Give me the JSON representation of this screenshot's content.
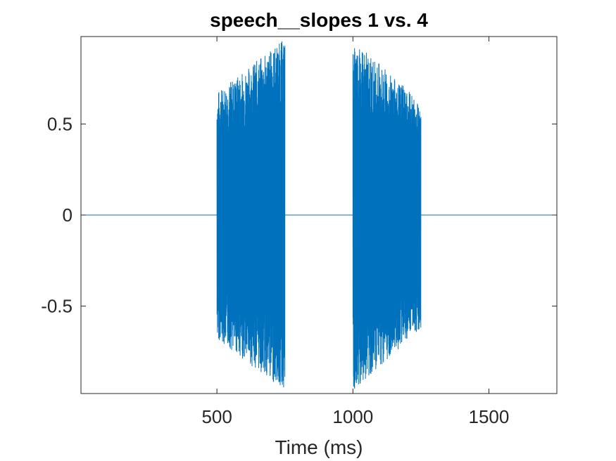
{
  "chart_data": {
    "type": "line",
    "title": "speech__slopes 1 vs. 4",
    "xlabel": "Time (ms)",
    "ylabel": "",
    "xlim": [
      0,
      1750
    ],
    "ylim": [
      -0.98,
      0.98
    ],
    "xticks": [
      500,
      1000,
      1500
    ],
    "xtick_labels": [
      "500",
      "1000",
      "1500"
    ],
    "yticks": [
      -0.5,
      0,
      0.5
    ],
    "ytick_labels": [
      "-0.5",
      "0",
      "0.5"
    ],
    "grid": false,
    "series_color": "#0072BD",
    "series": [
      {
        "bursts": [
          {
            "start_ms": 500,
            "end_ms": 750,
            "amplitude_start": 0.68,
            "amplitude_end": 0.97
          },
          {
            "start_ms": 1000,
            "end_ms": 1250,
            "amplitude_start": 0.97,
            "amplitude_end": 0.62
          }
        ],
        "baseline": 0
      }
    ]
  }
}
